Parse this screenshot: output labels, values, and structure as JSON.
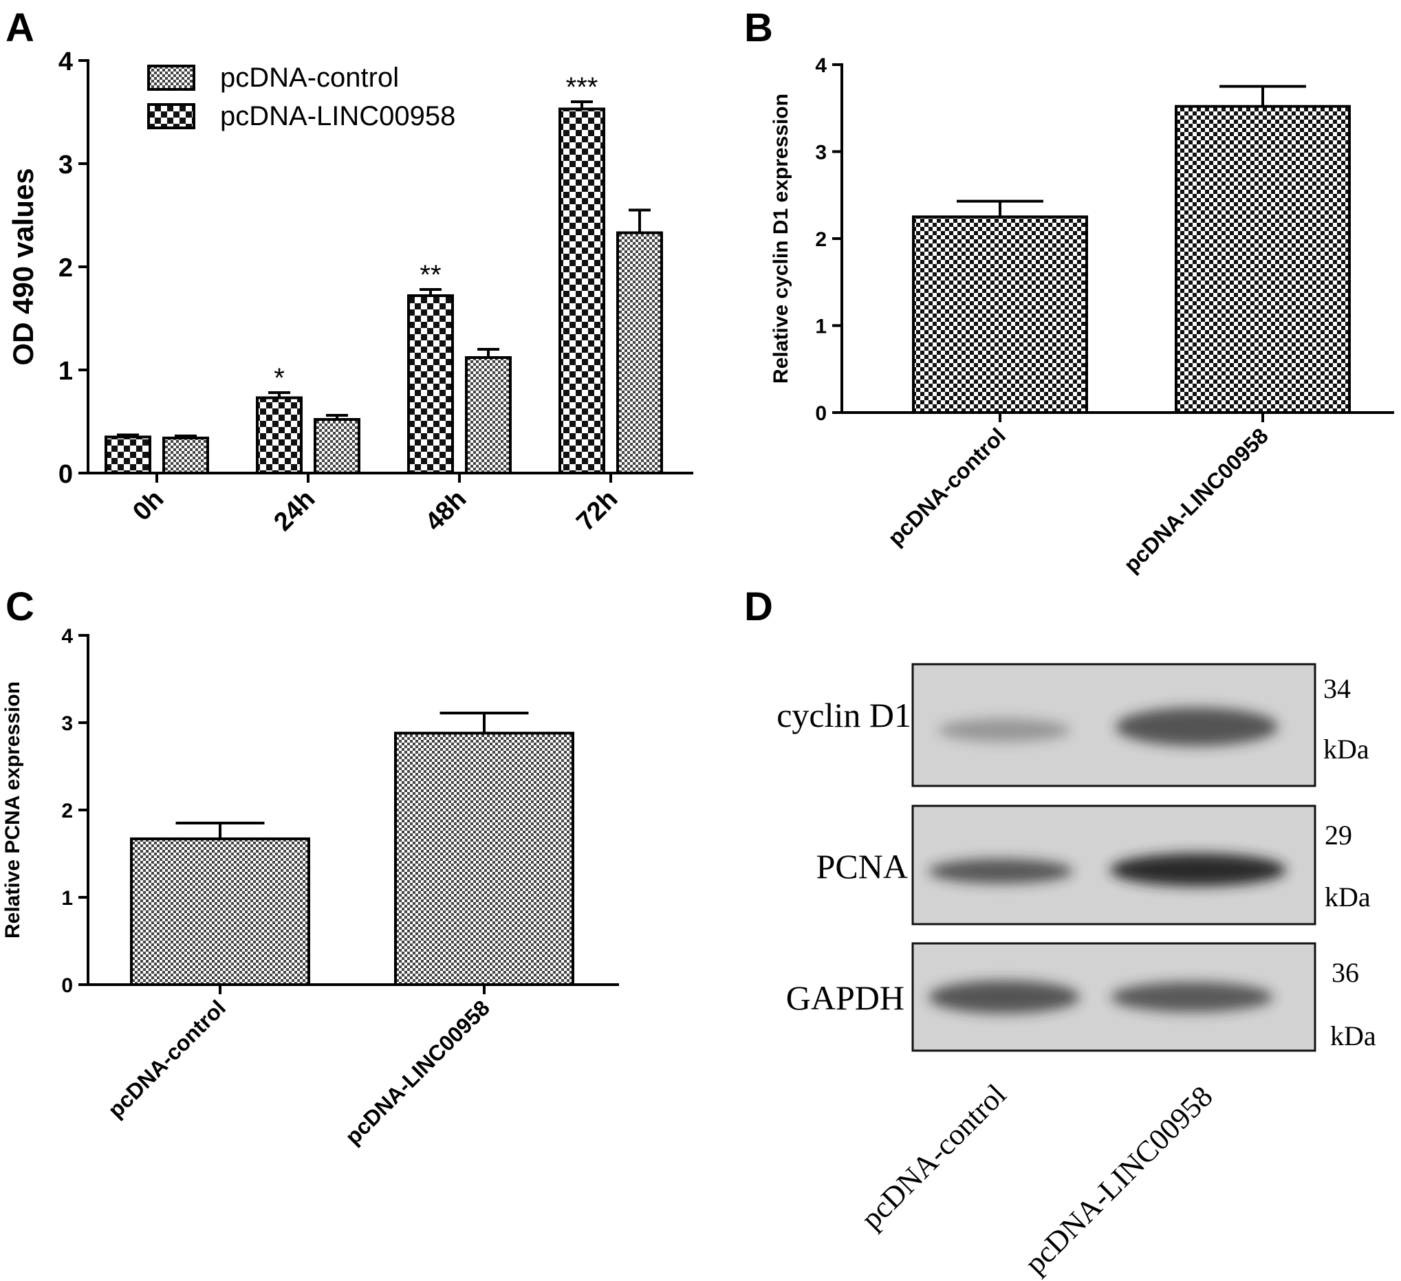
{
  "panels": {
    "a": {
      "letter": "A"
    },
    "b": {
      "letter": "B"
    },
    "c": {
      "letter": "C"
    },
    "d": {
      "letter": "D"
    }
  },
  "chart_data": [
    {
      "panel": "A",
      "type": "bar",
      "categories": [
        "0h",
        "24h",
        "48h",
        "72h"
      ],
      "series": [
        {
          "name": "pcDNA-LINC00958",
          "values": [
            0.35,
            0.73,
            1.72,
            3.53
          ],
          "errors": [
            0.02,
            0.05,
            0.06,
            0.07
          ],
          "pattern": "large-checker"
        },
        {
          "name": "pcDNA-control",
          "values": [
            0.34,
            0.52,
            1.12,
            2.33
          ],
          "errors": [
            0.02,
            0.04,
            0.08,
            0.22
          ],
          "pattern": "fine-checker"
        }
      ],
      "significance": [
        "",
        "*",
        "**",
        "***"
      ],
      "ylabel": "OD 490 values",
      "ylim": [
        0,
        4
      ],
      "yticks": [
        "0",
        "1",
        "2",
        "3",
        "4"
      ],
      "legend": [
        {
          "label": "pcDNA-control",
          "pattern": "fine-checker"
        },
        {
          "label": "pcDNA-LINC00958",
          "pattern": "large-checker"
        }
      ],
      "legend_position": "top-left",
      "grid": false
    },
    {
      "panel": "B",
      "type": "bar",
      "categories": [
        "pcDNA-control",
        "pcDNA-LINC00958"
      ],
      "values": [
        2.25,
        3.52
      ],
      "errors": [
        0.18,
        0.23
      ],
      "ylabel": "Relative  cyclin D1 expression",
      "ylim": [
        0,
        4
      ],
      "yticks": [
        "0",
        "1",
        "2",
        "3",
        "4"
      ],
      "grid": false
    },
    {
      "panel": "C",
      "type": "bar",
      "categories": [
        "pcDNA-control",
        "pcDNA-LINC00958"
      ],
      "values": [
        1.67,
        2.88
      ],
      "errors": [
        0.18,
        0.23
      ],
      "ylabel": "Relative  PCNA expression",
      "ylim": [
        0,
        4
      ],
      "yticks": [
        "0",
        "1",
        "2",
        "3",
        "4"
      ],
      "grid": false
    }
  ],
  "blot": {
    "rows": [
      {
        "label": "cyclin D1",
        "size_num": "34",
        "size_unit": "kDa",
        "intensity": [
          0.35,
          0.75
        ]
      },
      {
        "label": "PCNA",
        "size_num": "29",
        "size_unit": "kDa",
        "intensity": [
          0.7,
          0.95
        ]
      },
      {
        "label": "GAPDH",
        "size_num": "36",
        "size_unit": "kDa",
        "intensity": [
          0.75,
          0.72
        ]
      }
    ],
    "lanes": [
      "pcDNA-control",
      "pcDNA-LINC00958"
    ]
  }
}
